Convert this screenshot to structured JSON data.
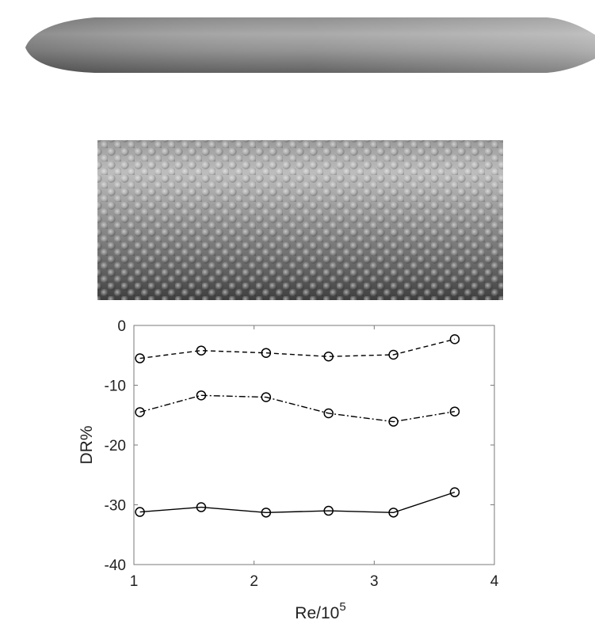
{
  "figure": {
    "top_image": "streamlined-body-render",
    "middle_image": "dimpled-surface-render",
    "colors": {
      "body_dark": "#6a6a6a",
      "body_mid": "#a9a9a9",
      "body_light": "#d2d2d2",
      "line": "#000000",
      "axes": "#7a7a7a"
    }
  },
  "chart_data": {
    "type": "line",
    "xlabel": "Re/10",
    "xlabel_superscript": "5",
    "ylabel": "DR%",
    "xlim": [
      1,
      4
    ],
    "ylim": [
      -40,
      0
    ],
    "xticks": [
      1,
      2,
      3,
      4
    ],
    "yticks": [
      0,
      -10,
      -20,
      -30,
      -40
    ],
    "grid": false,
    "legend": "none",
    "x": [
      1.05,
      1.56,
      2.1,
      2.62,
      3.16,
      3.67
    ],
    "series": [
      {
        "style": "dashed",
        "marker": "circle",
        "values": [
          -5.5,
          -4.2,
          -4.6,
          -5.2,
          -4.9,
          -2.3
        ]
      },
      {
        "style": "dashdot",
        "marker": "circle",
        "values": [
          -14.5,
          -11.7,
          -12.0,
          -14.7,
          -16.1,
          -14.4
        ]
      },
      {
        "style": "solid",
        "marker": "circle",
        "values": [
          -31.2,
          -30.4,
          -31.3,
          -31.0,
          -31.3,
          -27.9
        ]
      }
    ]
  }
}
